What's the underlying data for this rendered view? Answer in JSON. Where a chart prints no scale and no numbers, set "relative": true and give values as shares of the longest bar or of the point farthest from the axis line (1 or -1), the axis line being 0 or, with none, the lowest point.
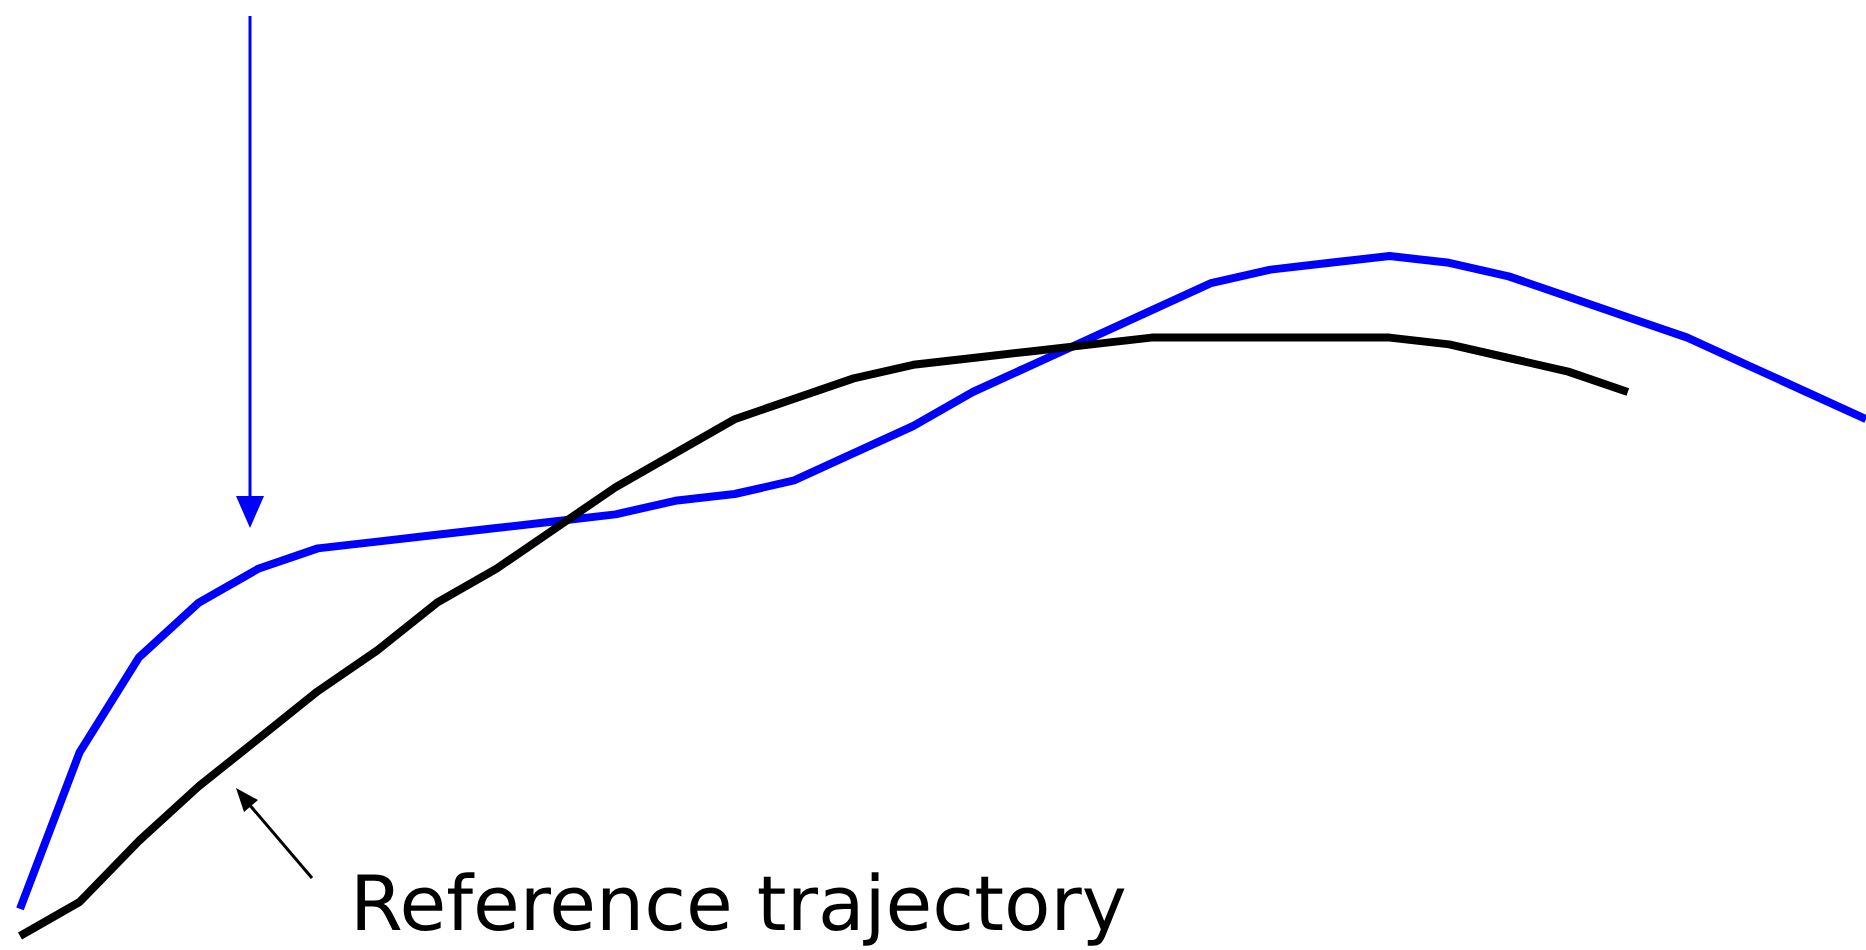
{
  "chart_data": {
    "type": "line",
    "relative": true,
    "marker": "none",
    "line_style": "solid",
    "categories": [
      null,
      null,
      null,
      null,
      null,
      null,
      null,
      null,
      null,
      null,
      null,
      null,
      null,
      null,
      null,
      null,
      null,
      null,
      null,
      null,
      null,
      null,
      null,
      null,
      null,
      null,
      null,
      null,
      null,
      null,
      null,
      null
    ],
    "series": [
      {
        "color": "#0000ff",
        "values": [
          0.04,
          0.27,
          0.41,
          0.49,
          0.54,
          0.57,
          0.58,
          0.59,
          0.6,
          0.61,
          0.62,
          0.64,
          0.65,
          0.67,
          0.71,
          0.75,
          0.8,
          0.84,
          0.88,
          0.92,
          0.96,
          0.98,
          0.99,
          1,
          0.99,
          0.97,
          0.94,
          0.91,
          0.88,
          0.84,
          0.8,
          0.76
        ]
      },
      {
        "color": "#000000",
        "values": [
          0,
          0.05,
          0.14,
          0.22,
          0.29,
          0.36,
          0.42,
          0.49,
          0.54,
          0.6,
          0.66,
          0.71,
          0.76,
          0.79,
          0.82,
          0.84,
          0.85,
          0.86,
          0.87,
          0.88,
          0.88,
          0.88,
          0.88,
          0.88,
          0.87,
          0.85,
          0.83,
          0.8,
          null,
          null,
          null,
          null
        ]
      }
    ],
    "annotations": [
      "Reference trajectory"
    ]
  }
}
